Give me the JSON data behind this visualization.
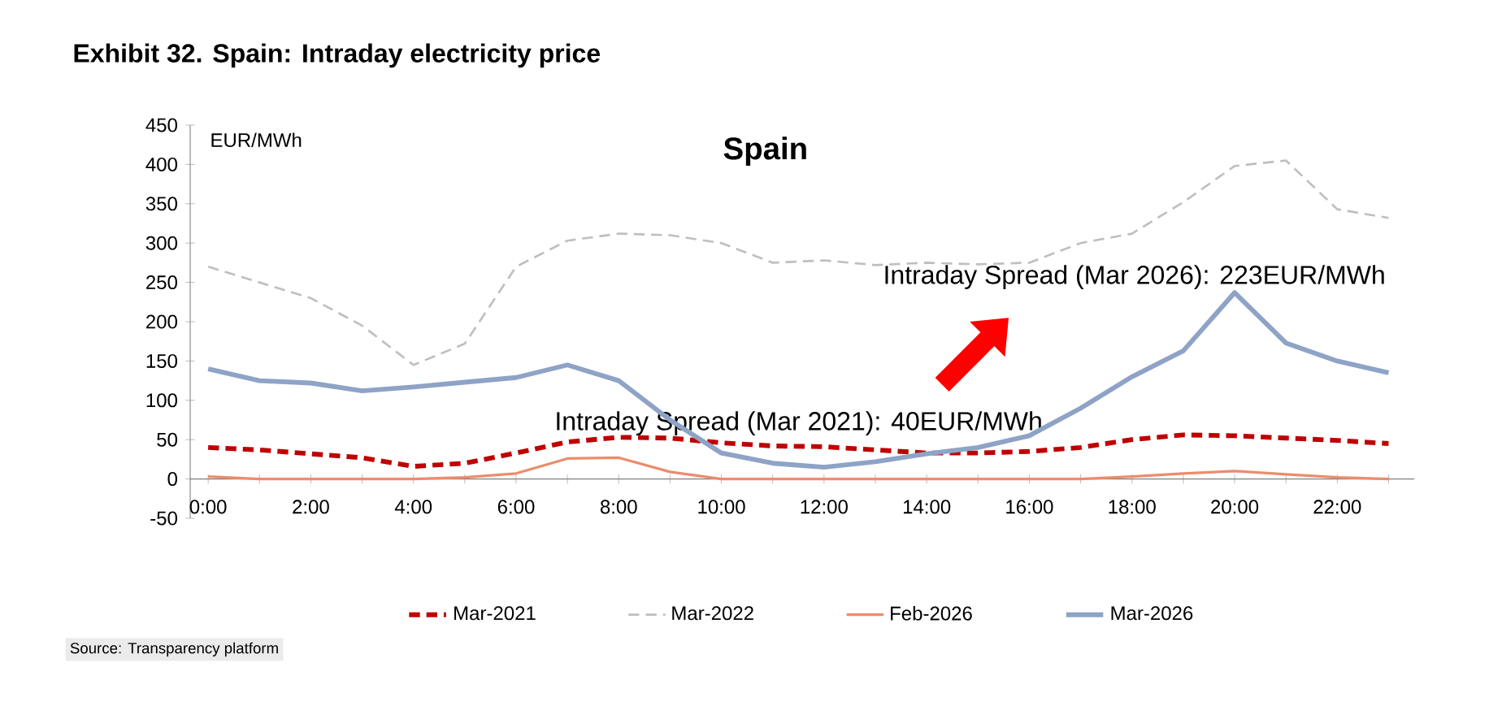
{
  "chart_data": {
    "type": "line",
    "title": "Exhibit 32. Spain: Intraday electricity price",
    "subtitle": "Spain",
    "ylabel": "EUR/MWh",
    "categories": [
      "0:00",
      null,
      "2:00",
      null,
      "4:00",
      null,
      "6:00",
      null,
      "8:00",
      null,
      "10:00",
      null,
      "12:00",
      null,
      "14:00",
      null,
      "16:00",
      null,
      "18:00",
      null,
      "20:00",
      null,
      "22:00",
      null
    ],
    "ylim": [
      -50,
      450
    ],
    "yticks": [
      -50,
      0,
      50,
      100,
      150,
      200,
      250,
      300,
      350,
      400,
      450
    ],
    "legend": "bottom",
    "series": [
      {
        "name": "Mar-2021",
        "color": "#c00000",
        "line_style": "dashed",
        "values": [
          40,
          37,
          32,
          27,
          16,
          20,
          33,
          47,
          53,
          52,
          46,
          42,
          41,
          37,
          33,
          33,
          35,
          40,
          50,
          56,
          55,
          52,
          49,
          45
        ]
      },
      {
        "name": "Mar-2022",
        "color": "#bfbfbf",
        "line_style": "dashed",
        "values": [
          270,
          250,
          230,
          195,
          145,
          172,
          270,
          303,
          312,
          310,
          300,
          275,
          278,
          272,
          275,
          273,
          275,
          300,
          312,
          352,
          398,
          405,
          343,
          332
        ]
      },
      {
        "name": "Feb-2026",
        "color": "#ec8c6c",
        "line_style": "solid",
        "values": [
          3,
          0,
          0,
          0,
          0,
          2,
          7,
          26,
          27,
          9,
          0,
          0,
          0,
          0,
          0,
          0,
          0,
          0,
          3,
          7,
          10,
          6,
          2,
          0
        ]
      },
      {
        "name": "Mar-2026",
        "color": "#8ea3c6",
        "line_style": "solid",
        "values": [
          140,
          125,
          122,
          112,
          117,
          123,
          129,
          145,
          125,
          75,
          33,
          20,
          15,
          22,
          32,
          40,
          55,
          90,
          130,
          163,
          237,
          173,
          150,
          135
        ]
      }
    ],
    "annotations": [
      "Intraday Spread (Mar 2021): 40EUR/MWh",
      "Intraday Spread (Mar 2026): 223EUR/MWh",
      "Source: Transparency platform"
    ]
  }
}
